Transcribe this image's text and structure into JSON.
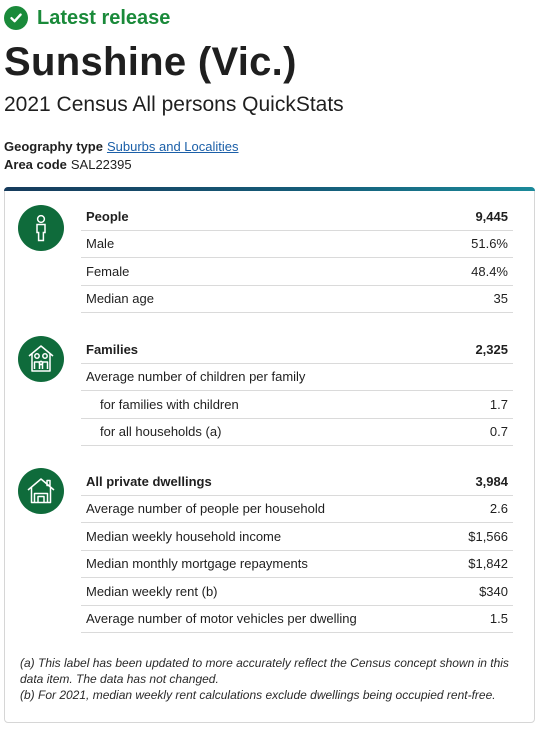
{
  "release": {
    "label": "Latest release",
    "icon": "check-circle-icon",
    "color": "#1a8a3a"
  },
  "title": "Sunshine (Vic.)",
  "subtitle": "2021 Census All persons QuickStats",
  "meta": {
    "geography_label": "Geography type",
    "geography_value": "Suburbs and Localities",
    "area_label": "Area code",
    "area_value": "SAL22395"
  },
  "sections": {
    "people": {
      "icon": "person-icon",
      "rows": [
        {
          "label": "People",
          "value": "9,445"
        },
        {
          "label": "Male",
          "value": "51.6%"
        },
        {
          "label": "Female",
          "value": "48.4%"
        },
        {
          "label": "Median age",
          "value": "35"
        }
      ]
    },
    "families": {
      "icon": "family-home-icon",
      "rows": [
        {
          "label": "Families",
          "value": "2,325"
        },
        {
          "label": "Average number of children per family",
          "value": ""
        },
        {
          "label": "for families with children",
          "value": "1.7"
        },
        {
          "label": "for all households (a)",
          "value": "0.7"
        }
      ]
    },
    "dwellings": {
      "icon": "house-icon",
      "rows": [
        {
          "label": "All private dwellings",
          "value": "3,984"
        },
        {
          "label": "Average number of people per household",
          "value": "2.6"
        },
        {
          "label": "Median weekly household income",
          "value": "$1,566"
        },
        {
          "label": "Median monthly mortgage repayments",
          "value": "$1,842"
        },
        {
          "label": "Median weekly rent (b)",
          "value": "$340"
        },
        {
          "label": "Average number of motor vehicles per dwelling",
          "value": "1.5"
        }
      ]
    }
  },
  "footnotes": {
    "a": "(a) This label has been updated to more accurately reflect the Census concept shown in this data item. The data has not changed.",
    "b": "(b) For 2021, median weekly rent calculations exclude dwellings being occupied rent-free."
  },
  "colors": {
    "icon_bg": "#0f6b3b",
    "link": "#1b5fa8"
  }
}
